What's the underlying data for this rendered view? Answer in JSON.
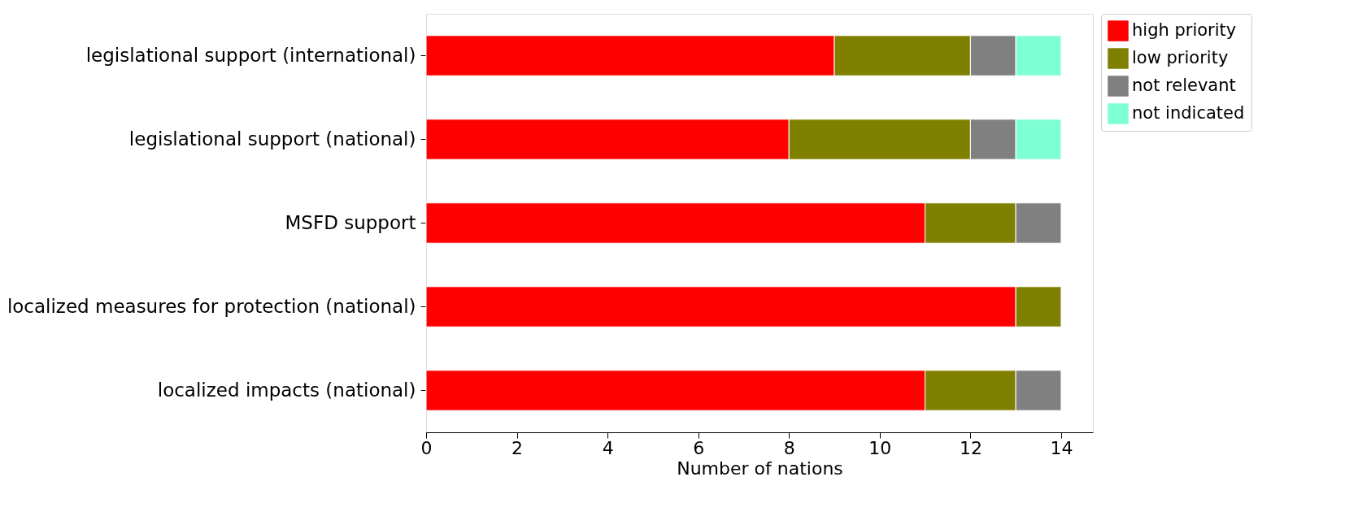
{
  "chart_data": {
    "type": "bar",
    "orientation": "horizontal",
    "stacked": true,
    "categories": [
      "legislational support (international)",
      "legislational support (national)",
      "MSFD support",
      "localized measures for protection (national)",
      "localized impacts (national)"
    ],
    "series": [
      {
        "name": "high priority",
        "color": "#ff0000",
        "values": [
          9,
          8,
          11,
          13,
          11
        ]
      },
      {
        "name": "low priority",
        "color": "#808000",
        "values": [
          3,
          4,
          2,
          1,
          2
        ]
      },
      {
        "name": "not relevant",
        "color": "#808080",
        "values": [
          1,
          1,
          1,
          0,
          1
        ]
      },
      {
        "name": "not indicated",
        "color": "#7fffd4",
        "values": [
          1,
          1,
          0,
          0,
          0
        ]
      }
    ],
    "xlabel": "Number of nations",
    "xlim": [
      0,
      14.7
    ],
    "xticks": [
      0,
      2,
      4,
      6,
      8,
      10,
      12,
      14
    ],
    "grid": false,
    "legend": "top right"
  }
}
